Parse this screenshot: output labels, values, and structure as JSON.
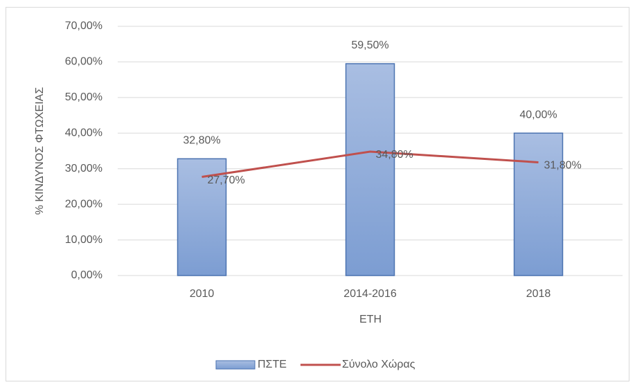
{
  "chart_data": {
    "type": "bar",
    "y_axis_label": "% ΚΙΝΔΥΝΟΣ ΦΤΩΧΕΙΑΣ",
    "x_axis_label": "ΕΤΗ",
    "categories": [
      "2010",
      "2014-2016",
      "2018"
    ],
    "series": [
      {
        "name": "ΠΣΤΕ",
        "type": "bar",
        "color": "#8faadc",
        "values": [
          32.8,
          59.5,
          40.0
        ],
        "value_labels": [
          "32,80%",
          "59,50%",
          "40,00%"
        ]
      },
      {
        "name": "Σύνολο Χώρας",
        "type": "line",
        "color": "#c0504d",
        "values": [
          27.7,
          34.8,
          31.8
        ],
        "value_labels": [
          "27,70%",
          "34,80%",
          "31,80%"
        ]
      }
    ],
    "ylim": [
      0,
      70
    ],
    "yticks": [
      {
        "value": 0,
        "label": "0,00%"
      },
      {
        "value": 10,
        "label": "10,00%"
      },
      {
        "value": 20,
        "label": "20,00%"
      },
      {
        "value": 30,
        "label": "30,00%"
      },
      {
        "value": 40,
        "label": "40,00%"
      },
      {
        "value": 50,
        "label": "50,00%"
      },
      {
        "value": 60,
        "label": "60,00%"
      },
      {
        "value": 70,
        "label": "70,00%"
      }
    ],
    "grid": true,
    "legend": "bottom"
  }
}
